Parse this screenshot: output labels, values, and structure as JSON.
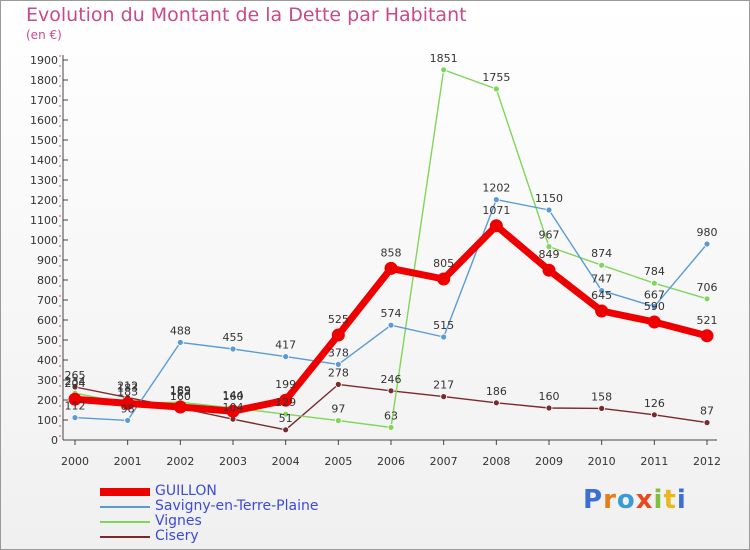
{
  "chart_data": {
    "type": "line",
    "title": "Evolution du Montant de la Dette par Habitant",
    "subtitle": "(en €)",
    "xlabel": "",
    "ylabel": "",
    "categories": [
      "2000",
      "2001",
      "2002",
      "2003",
      "2004",
      "2005",
      "2006",
      "2007",
      "2008",
      "2009",
      "2010",
      "2011",
      "2012"
    ],
    "ylim": [
      0,
      1900
    ],
    "yticks": [
      0,
      100,
      200,
      300,
      400,
      500,
      600,
      700,
      800,
      900,
      1000,
      1100,
      1200,
      1300,
      1400,
      1500,
      1600,
      1700,
      1800,
      1900
    ],
    "grid": false,
    "legend_position": "bottom-left",
    "series": [
      {
        "name": "GUILLON",
        "color": "#ee0000",
        "values": [
          204,
          183,
          165,
          144,
          199,
          525,
          858,
          805,
          1071,
          849,
          645,
          590,
          521
        ]
      },
      {
        "name": "Savigny-en-Terre-Plaine",
        "color": "#5b9bd5",
        "values": [
          112,
          98,
          488,
          455,
          417,
          378,
          574,
          515,
          1202,
          1150,
          747,
          667,
          980
        ]
      },
      {
        "name": "Vignes",
        "color": "#7fd65a",
        "values": [
          234,
          183,
          189,
          160,
          129,
          97,
          63,
          1851,
          1755,
          967,
          874,
          784,
          706
        ]
      },
      {
        "name": "Cisery",
        "color": "#7a2a2a",
        "values": [
          265,
          212,
          160,
          104,
          51,
          278,
          246,
          217,
          186,
          160,
          158,
          126,
          87
        ]
      }
    ]
  },
  "logo": {
    "text": "Proxiti"
  }
}
